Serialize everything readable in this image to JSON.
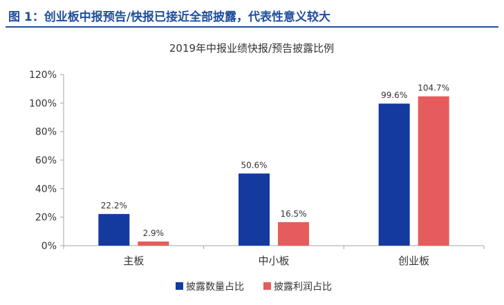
{
  "figure": {
    "title": "图 1：创业板中报预告/快报已接近全部披露，代表性意义较大"
  },
  "colors": {
    "header": "#1f4e9c",
    "series_1": "#143aa0",
    "series_2": "#e65c5c",
    "axis": "#a6a6a6"
  },
  "chart_data": {
    "type": "bar",
    "title": "2019年中报业绩快报/预告披露比例",
    "categories": [
      "主板",
      "中小板",
      "创业板"
    ],
    "series": [
      {
        "name": "披露数量占比",
        "values": [
          22.2,
          50.6,
          99.6
        ],
        "labels": [
          "22.2%",
          "50.6%",
          "99.6%"
        ]
      },
      {
        "name": "披露利润占比",
        "values": [
          2.9,
          16.5,
          104.7
        ],
        "labels": [
          "2.9%",
          "16.5%",
          "104.7%"
        ]
      }
    ],
    "y_ticks": [
      "0%",
      "20%",
      "40%",
      "60%",
      "80%",
      "100%",
      "120%"
    ],
    "ylim": [
      0,
      120
    ],
    "xlabel": "",
    "ylabel": "",
    "grid": false,
    "legend_position": "bottom"
  }
}
